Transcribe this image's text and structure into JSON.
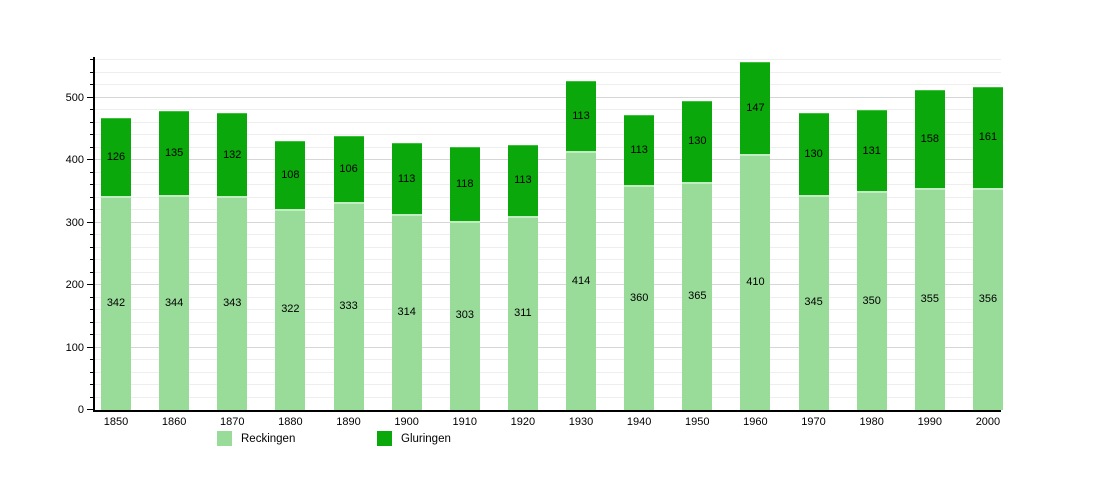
{
  "chart_data": {
    "type": "bar",
    "stacked": true,
    "title": "",
    "xlabel": "",
    "ylabel": "",
    "categories": [
      "1850",
      "1860",
      "1870",
      "1880",
      "1890",
      "1900",
      "1910",
      "1920",
      "1930",
      "1940",
      "1950",
      "1960",
      "1970",
      "1980",
      "1990",
      "2000"
    ],
    "series": [
      {
        "name": "Reckingen",
        "color": "#99dc99",
        "values": [
          342,
          344,
          343,
          322,
          333,
          314,
          303,
          311,
          414,
          360,
          365,
          410,
          345,
          350,
          355,
          356
        ]
      },
      {
        "name": "Gluringen",
        "color": "#0aa80a",
        "values": [
          126,
          135,
          132,
          108,
          106,
          113,
          118,
          113,
          113,
          113,
          130,
          147,
          130,
          131,
          158,
          161
        ]
      }
    ],
    "totals": [
      468,
      479,
      475,
      430,
      439,
      427,
      421,
      424,
      527,
      473,
      495,
      557,
      475,
      481,
      513,
      517
    ],
    "ylim": [
      0,
      562
    ],
    "ytick_values": [
      0,
      100,
      200,
      300,
      400,
      500
    ],
    "ytick_labels": [
      "0",
      "100",
      "200",
      "300",
      "400",
      "500"
    ],
    "grid": {
      "orientation": "horizontal",
      "minor_step": 20,
      "major_step": 100,
      "minor_color": "#eeeeee",
      "major_color": "#d6d6d6"
    },
    "legend_position": "bottom-left",
    "bar_value_labels": "centered inside each segment"
  },
  "legend": {
    "items": [
      {
        "label": "Reckingen",
        "color": "#99dc99"
      },
      {
        "label": "Gluringen",
        "color": "#0aa80a"
      }
    ]
  },
  "colors": {
    "background": "#ffffff",
    "axis": "#000000",
    "label_text": "#000000",
    "reckingen_fill": "#99dc99",
    "reckingen_top_edge": "#c2ecc2",
    "gluringen_fill": "#0aa80a",
    "gluringen_top_edge": "#3dc13d"
  }
}
